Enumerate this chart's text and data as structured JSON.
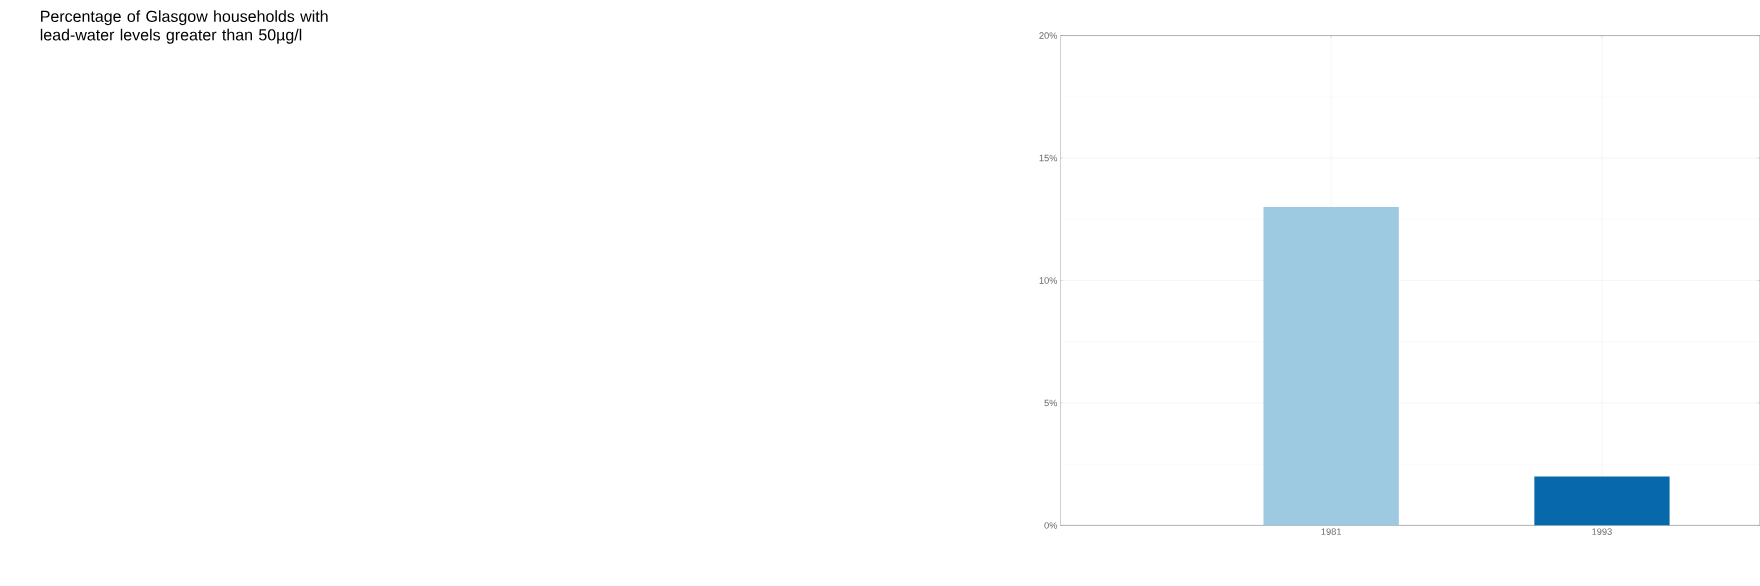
{
  "chart_data": {
    "type": "bar",
    "title": "Percentage of Glasgow households with\nlead-water levels greater than 50µg/l",
    "x": [
      1981,
      1993
    ],
    "values": [
      13,
      2
    ],
    "colors": [
      "#9ecae1",
      "#0868ac"
    ],
    "xlim": [
      1969,
      2000
    ],
    "xticks": [
      1981,
      1993
    ],
    "ylim": [
      0,
      20
    ],
    "yticks": [
      {
        "value": 0,
        "label": "0%"
      },
      {
        "value": 5,
        "label": "5%"
      },
      {
        "value": 10,
        "label": "10%"
      },
      {
        "value": 15,
        "label": "15%"
      },
      {
        "value": 20,
        "label": "20%"
      }
    ],
    "grid": true
  }
}
